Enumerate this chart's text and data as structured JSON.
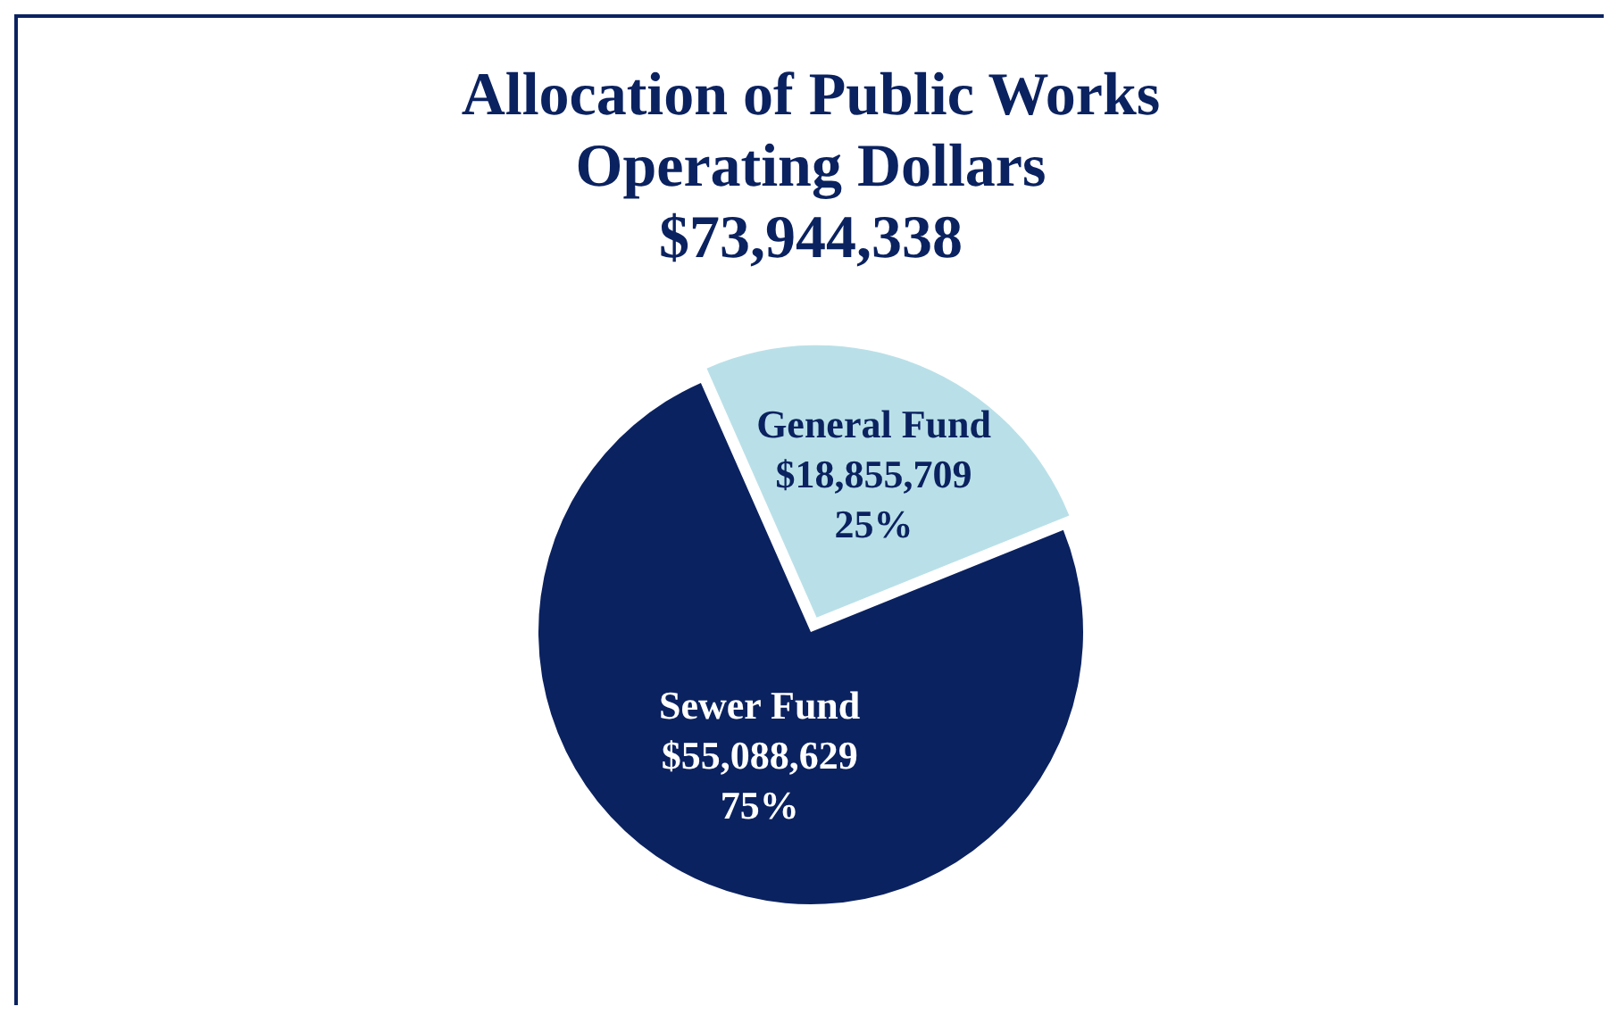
{
  "chart_data": {
    "type": "pie",
    "title": "Allocation of Public Works Operating Dollars",
    "subtitle": "$73,944,338",
    "categories": [
      "Sewer Fund",
      "General Fund"
    ],
    "values": [
      55088629,
      18855709
    ],
    "colors": [
      "#0b2260",
      "#b9e0e8"
    ],
    "value_labels": [
      "$55,088,629\n75%",
      "$18,855,709\n25%"
    ],
    "legend": false
  }
}
